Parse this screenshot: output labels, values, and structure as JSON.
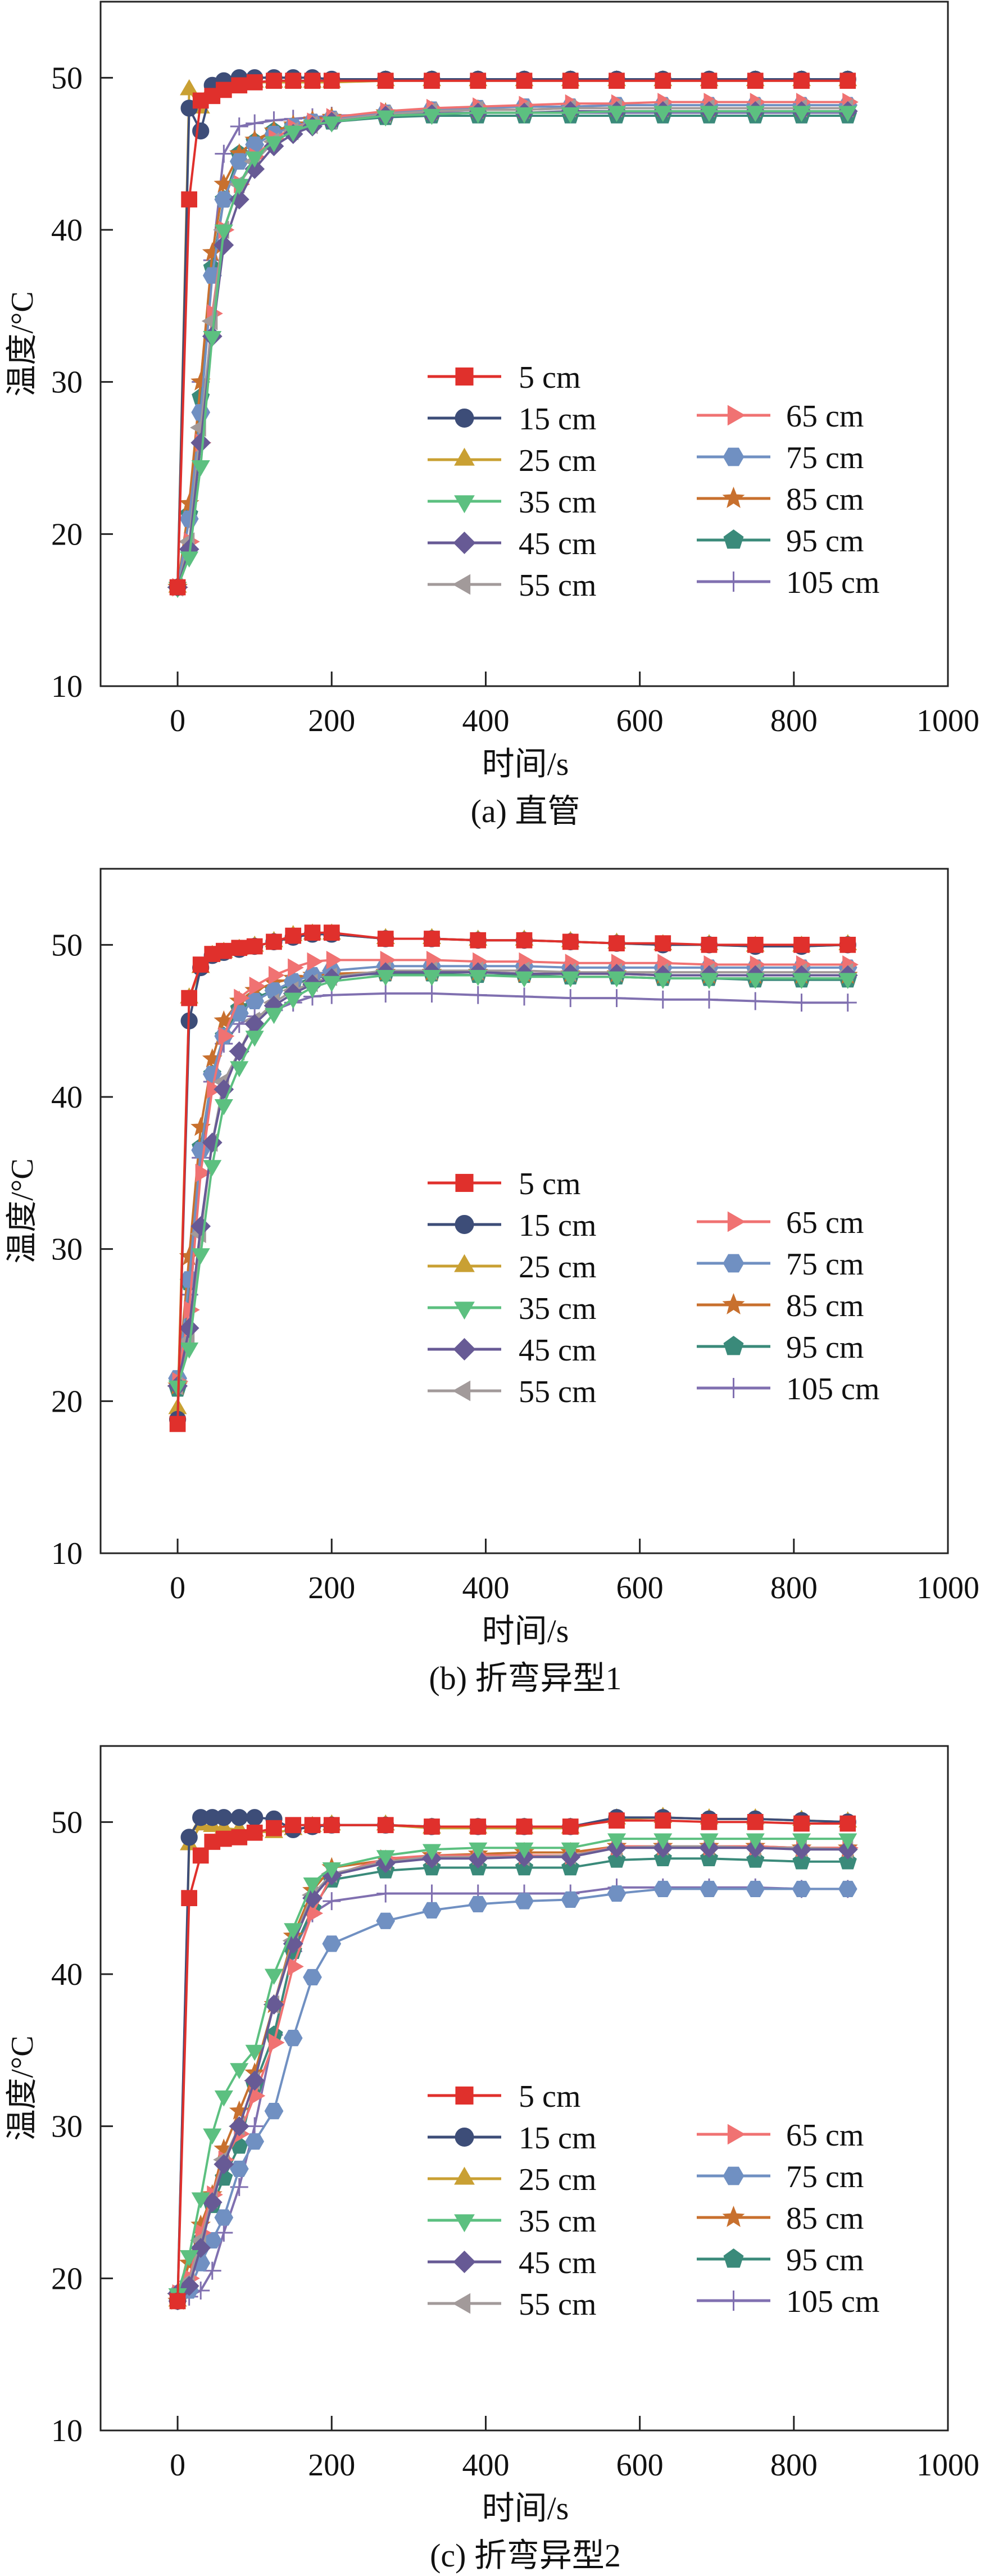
{
  "chart_data": [
    {
      "type": "line",
      "caption": "(a) 直管",
      "xlabel": "时间/s",
      "ylabel": "温度/°C",
      "xlim": [
        -100,
        1000
      ],
      "ylim": [
        10,
        55
      ],
      "xticks": [
        0,
        200,
        400,
        600,
        800,
        1000
      ],
      "yticks": [
        10,
        20,
        30,
        40,
        50
      ],
      "legend": "center-right, two columns",
      "x": [
        0,
        15,
        30,
        45,
        60,
        80,
        100,
        125,
        150,
        175,
        200,
        270,
        330,
        390,
        450,
        510,
        570,
        630,
        690,
        750,
        810,
        870
      ],
      "series": [
        {
          "name": "5 cm",
          "color": "#e0302c",
          "marker": "square",
          "values": [
            16.5,
            42,
            48.5,
            48.8,
            49.2,
            49.5,
            49.7,
            49.8,
            49.8,
            49.8,
            49.8,
            49.8,
            49.8,
            49.8,
            49.8,
            49.8,
            49.8,
            49.8,
            49.8,
            49.8,
            49.8,
            49.8
          ]
        },
        {
          "name": "15 cm",
          "color": "#3d4d78",
          "marker": "circle",
          "values": [
            16.5,
            48,
            46.5,
            49.5,
            49.8,
            50,
            50,
            50,
            50,
            50,
            49.9,
            49.9,
            49.9,
            49.9,
            49.9,
            49.9,
            49.9,
            49.9,
            49.9,
            49.9,
            49.9,
            49.9
          ]
        },
        {
          "name": "25 cm",
          "color": "#c9a033",
          "marker": "triangle-up",
          "values": [
            16.5,
            49.2,
            48,
            49.3,
            49.5,
            49.6,
            49.7,
            49.7,
            49.7,
            49.7,
            49.7,
            49.8,
            49.8,
            49.8,
            49.8,
            49.8,
            49.8,
            49.8,
            49.8,
            49.8,
            49.8,
            49.8
          ]
        },
        {
          "name": "35 cm",
          "color": "#5cc080",
          "marker": "triangle-down",
          "values": [
            16.5,
            18.5,
            24.5,
            33,
            40,
            43,
            44.8,
            45.8,
            46.5,
            46.9,
            47.1,
            47.5,
            47.6,
            47.7,
            47.7,
            47.7,
            47.8,
            47.8,
            47.8,
            47.8,
            47.8,
            47.8
          ]
        },
        {
          "name": "45 cm",
          "color": "#675a95",
          "marker": "diamond",
          "values": [
            16.5,
            19,
            26,
            33,
            39,
            42,
            44,
            45.5,
            46.3,
            46.8,
            47.1,
            47.5,
            47.6,
            47.7,
            47.7,
            47.8,
            47.8,
            47.8,
            47.8,
            47.8,
            47.8,
            47.8
          ]
        },
        {
          "name": "55 cm",
          "color": "#a29a9a",
          "marker": "triangle-left",
          "values": [
            16.5,
            19.5,
            27,
            34,
            40,
            43,
            44.5,
            45.8,
            46.5,
            46.9,
            47.2,
            47.6,
            47.8,
            47.9,
            47.9,
            48,
            48,
            48,
            48,
            48,
            48,
            48
          ]
        },
        {
          "name": "65 cm",
          "color": "#f07272",
          "marker": "triangle-right",
          "values": [
            16.5,
            19.5,
            26,
            34.5,
            40,
            43,
            44.8,
            46,
            46.7,
            47.1,
            47.4,
            47.8,
            48,
            48.1,
            48.2,
            48.3,
            48.3,
            48.4,
            48.4,
            48.4,
            48.4,
            48.4
          ]
        },
        {
          "name": "75 cm",
          "color": "#7090c2",
          "marker": "hexagon",
          "values": [
            16.5,
            21,
            28,
            37,
            42,
            44.5,
            45.6,
            46.3,
            46.8,
            47.1,
            47.3,
            47.7,
            47.9,
            48,
            48.1,
            48.1,
            48.2,
            48.2,
            48.2,
            48.2,
            48.2,
            48.2
          ]
        },
        {
          "name": "85 cm",
          "color": "#c8702e",
          "marker": "star",
          "values": [
            16.5,
            22,
            30,
            38.5,
            43,
            45,
            45.9,
            46.5,
            46.9,
            47.2,
            47.4,
            47.7,
            47.8,
            47.9,
            47.9,
            48,
            48,
            48,
            48,
            48,
            48,
            48
          ]
        },
        {
          "name": "95 cm",
          "color": "#3a8a7a",
          "marker": "pentagon",
          "values": [
            16.5,
            21.3,
            29,
            37.5,
            42,
            45,
            45.8,
            46.5,
            46.8,
            47,
            47.1,
            47.4,
            47.5,
            47.5,
            47.5,
            47.5,
            47.5,
            47.5,
            47.5,
            47.5,
            47.5,
            47.5
          ]
        },
        {
          "name": "105 cm",
          "color": "#8070b0",
          "marker": "plus",
          "values": [
            16.5,
            21,
            30,
            38,
            45,
            46.8,
            47,
            47.2,
            47.3,
            47.4,
            47.5,
            47.6,
            47.7,
            47.7,
            47.7,
            47.7,
            47.7,
            47.7,
            47.7,
            47.7,
            47.7,
            47.7
          ]
        }
      ]
    },
    {
      "type": "line",
      "caption": "(b) 折弯异型1",
      "xlabel": "时间/s",
      "ylabel": "温度/°C",
      "xlim": [
        -100,
        1000
      ],
      "ylim": [
        10,
        55
      ],
      "xticks": [
        0,
        200,
        400,
        600,
        800,
        1000
      ],
      "yticks": [
        10,
        20,
        30,
        40,
        50
      ],
      "legend": "center-right, two columns",
      "x": [
        0,
        15,
        30,
        45,
        60,
        80,
        100,
        125,
        150,
        175,
        200,
        270,
        330,
        390,
        450,
        510,
        570,
        630,
        690,
        750,
        810,
        870
      ],
      "series": [
        {
          "name": "5 cm",
          "color": "#e0302c",
          "marker": "square",
          "values": [
            18.5,
            46.5,
            48.7,
            49.4,
            49.6,
            49.8,
            49.9,
            50.2,
            50.6,
            50.8,
            50.8,
            50.4,
            50.4,
            50.3,
            50.3,
            50.2,
            50.1,
            50.1,
            50,
            50,
            50,
            50
          ]
        },
        {
          "name": "15 cm",
          "color": "#3d4d78",
          "marker": "circle",
          "values": [
            18.8,
            45,
            48.5,
            49.3,
            49.5,
            49.7,
            49.9,
            50.2,
            50.5,
            50.7,
            50.7,
            50.4,
            50.4,
            50.3,
            50.3,
            50.2,
            50.1,
            50,
            50,
            49.9,
            49.9,
            50
          ]
        },
        {
          "name": "25 cm",
          "color": "#c9a033",
          "marker": "triangle-up",
          "values": [
            19.5,
            46.5,
            48.5,
            49.3,
            49.5,
            49.7,
            49.9,
            50.2,
            50.6,
            50.7,
            50.7,
            50.4,
            50.4,
            50.3,
            50.3,
            50.2,
            50.1,
            50,
            50,
            49.9,
            49.9,
            50
          ]
        },
        {
          "name": "35 cm",
          "color": "#5cc080",
          "marker": "triangle-down",
          "values": [
            21,
            23.5,
            29.7,
            35.5,
            39.5,
            42,
            44,
            45.5,
            46.5,
            47.2,
            47.6,
            48,
            48,
            48,
            47.9,
            47.9,
            47.9,
            47.8,
            47.8,
            47.8,
            47.8,
            47.8
          ]
        },
        {
          "name": "45 cm",
          "color": "#675a95",
          "marker": "diamond",
          "values": [
            21,
            24.8,
            31.5,
            37,
            40.5,
            43,
            44.8,
            46,
            46.8,
            47.4,
            47.8,
            48.2,
            48.2,
            48.2,
            48.1,
            48.1,
            48.1,
            48,
            48,
            48,
            48,
            48
          ]
        },
        {
          "name": "55 cm",
          "color": "#a29a9a",
          "marker": "triangle-left",
          "values": [
            21,
            24,
            31,
            37,
            41,
            43,
            45,
            46.2,
            47,
            47.5,
            47.9,
            48.3,
            48.3,
            48.3,
            48.3,
            48.2,
            48.2,
            48.2,
            48.2,
            48.2,
            48.2,
            48.2
          ]
        },
        {
          "name": "65 cm",
          "color": "#f07272",
          "marker": "triangle-right",
          "values": [
            21.3,
            26,
            35,
            40.5,
            44,
            46.5,
            47.3,
            48,
            48.5,
            48.9,
            49,
            49,
            49,
            48.9,
            48.9,
            48.8,
            48.8,
            48.8,
            48.7,
            48.7,
            48.7,
            48.7
          ]
        },
        {
          "name": "75 cm",
          "color": "#7090c2",
          "marker": "hexagon",
          "values": [
            21.5,
            28,
            36.5,
            41.5,
            44,
            45.5,
            46.3,
            47,
            47.6,
            48,
            48.3,
            48.6,
            48.6,
            48.6,
            48.6,
            48.5,
            48.5,
            48.5,
            48.5,
            48.5,
            48.5,
            48.5
          ]
        },
        {
          "name": "85 cm",
          "color": "#c8702e",
          "marker": "star",
          "values": [
            21,
            29.5,
            38,
            42.5,
            45,
            46.3,
            47,
            47.5,
            47.8,
            48,
            48.1,
            48.2,
            48.2,
            48.2,
            48.1,
            48.1,
            48.1,
            48,
            48,
            48,
            48,
            48
          ]
        },
        {
          "name": "95 cm",
          "color": "#3a8a7a",
          "marker": "pentagon",
          "values": [
            20.8,
            27.8,
            36.7,
            41.5,
            44,
            45.8,
            46.5,
            47,
            47.4,
            47.8,
            48,
            48.1,
            48.1,
            48,
            48,
            47.9,
            47.9,
            47.8,
            47.8,
            47.7,
            47.7,
            47.7
          ]
        },
        {
          "name": "105 cm",
          "color": "#8070b0",
          "marker": "plus",
          "values": [
            21,
            27,
            36,
            41,
            43.5,
            44.8,
            45.3,
            45.7,
            46.2,
            46.6,
            46.7,
            46.8,
            46.8,
            46.7,
            46.6,
            46.5,
            46.5,
            46.4,
            46.4,
            46.3,
            46.2,
            46.2
          ]
        }
      ]
    },
    {
      "type": "line",
      "caption": "(c) 折弯异型2",
      "xlabel": "时间/s",
      "ylabel": "温度/°C",
      "xlim": [
        -100,
        1000
      ],
      "ylim": [
        10,
        55
      ],
      "xticks": [
        0,
        200,
        400,
        600,
        800,
        1000
      ],
      "yticks": [
        10,
        20,
        30,
        40,
        50
      ],
      "legend": "center-right, two columns",
      "x": [
        0,
        15,
        30,
        45,
        60,
        80,
        100,
        125,
        150,
        175,
        200,
        270,
        330,
        390,
        450,
        510,
        570,
        630,
        690,
        750,
        810,
        870
      ],
      "series": [
        {
          "name": "5 cm",
          "color": "#e0302c",
          "marker": "square",
          "values": [
            18.5,
            45,
            47.8,
            48.7,
            48.9,
            49,
            49.3,
            49.6,
            49.8,
            49.8,
            49.8,
            49.8,
            49.7,
            49.7,
            49.7,
            49.7,
            50.1,
            50.1,
            50,
            50,
            49.9,
            49.9
          ]
        },
        {
          "name": "15 cm",
          "color": "#3d4d78",
          "marker": "circle",
          "values": [
            18.5,
            49,
            50.3,
            50.3,
            50.3,
            50.3,
            50.3,
            50.2,
            49.5,
            49.7,
            49.8,
            49.8,
            49.7,
            49.7,
            49.7,
            49.7,
            50.3,
            50.3,
            50.2,
            50.2,
            50.1,
            50
          ]
        },
        {
          "name": "25 cm",
          "color": "#c9a033",
          "marker": "triangle-up",
          "values": [
            18.5,
            48.5,
            49.8,
            49.7,
            49.6,
            49.5,
            49.4,
            49.3,
            49.5,
            49.7,
            49.8,
            49.8,
            49.6,
            49.6,
            49.6,
            49.6,
            50.2,
            50.3,
            50.2,
            50.2,
            50.1,
            50
          ]
        },
        {
          "name": "35 cm",
          "color": "#5cc080",
          "marker": "triangle-down",
          "values": [
            19,
            21.5,
            25.3,
            29.5,
            32,
            33.8,
            35,
            40,
            43,
            46,
            47,
            47.8,
            48.2,
            48.3,
            48.3,
            48.3,
            48.9,
            48.9,
            48.9,
            48.9,
            48.9,
            48.9
          ]
        },
        {
          "name": "45 cm",
          "color": "#675a95",
          "marker": "diamond",
          "values": [
            19,
            19.5,
            22,
            25,
            27.5,
            30,
            33,
            38,
            42,
            45,
            46.5,
            47.3,
            47.6,
            47.6,
            47.7,
            47.7,
            48.3,
            48.3,
            48.3,
            48.3,
            48.2,
            48.2
          ]
        },
        {
          "name": "55 cm",
          "color": "#a29a9a",
          "marker": "triangle-left",
          "values": [
            19,
            19.8,
            22.5,
            25.2,
            27.8,
            30,
            33,
            38,
            42.2,
            45.2,
            46.6,
            47.4,
            47.7,
            47.7,
            47.7,
            47.8,
            48.3,
            48.4,
            48.4,
            48.3,
            48.3,
            48.2
          ]
        },
        {
          "name": "65 cm",
          "color": "#f07272",
          "marker": "triangle-right",
          "values": [
            19,
            20,
            23,
            25.5,
            27.8,
            29.5,
            32,
            35.5,
            40.5,
            44,
            46.5,
            47.6,
            47.8,
            47.8,
            47.8,
            47.8,
            48.4,
            48.4,
            48.4,
            48.4,
            48.3,
            48.3
          ]
        },
        {
          "name": "75 cm",
          "color": "#7090c2",
          "marker": "hexagon",
          "values": [
            19,
            19.2,
            21,
            22.5,
            24,
            27.2,
            29,
            31,
            35.8,
            39.8,
            42,
            43.5,
            44.2,
            44.6,
            44.8,
            44.9,
            45.3,
            45.6,
            45.6,
            45.6,
            45.6,
            45.6
          ]
        },
        {
          "name": "85 cm",
          "color": "#c8702e",
          "marker": "star",
          "values": [
            18.5,
            21,
            23.5,
            25.5,
            28.5,
            31,
            33.5,
            38,
            42.5,
            45.5,
            47,
            47.5,
            47.8,
            47.9,
            48,
            48,
            48.4,
            48.4,
            48.4,
            48.4,
            48.3,
            48.3
          ]
        },
        {
          "name": "95 cm",
          "color": "#3a8a7a",
          "marker": "pentagon",
          "values": [
            18.5,
            19.3,
            22.5,
            24.8,
            26.6,
            28.7,
            32.7,
            36,
            41.5,
            44.3,
            46.2,
            46.8,
            47,
            47,
            47,
            47,
            47.5,
            47.6,
            47.6,
            47.5,
            47.4,
            47.4
          ]
        },
        {
          "name": "105 cm",
          "color": "#8070b0",
          "marker": "plus",
          "values": [
            18.5,
            18.8,
            19.2,
            20.5,
            23,
            26,
            30,
            36,
            41.5,
            44,
            44.8,
            45.3,
            45.3,
            45.3,
            45.3,
            45.3,
            45.7,
            45.7,
            45.7,
            45.7,
            45.6,
            45.6
          ]
        }
      ]
    }
  ]
}
